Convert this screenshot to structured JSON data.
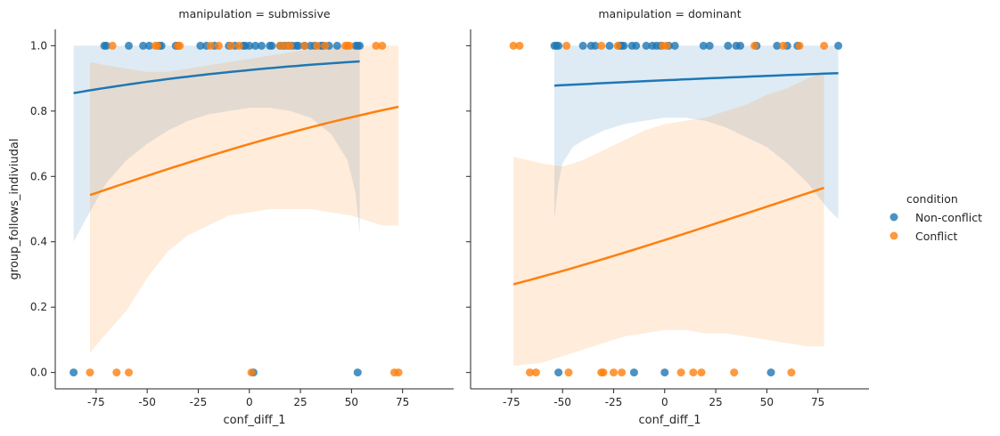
{
  "colors": {
    "Non-conflict": "#1f77b4",
    "Conflict": "#ff7f0e"
  },
  "chart_data": {
    "type": "scatter",
    "subtype": "logistic regression facets with confidence bands",
    "ylabel": "group_follows_indiviudal",
    "xlim": [
      -95,
      100
    ],
    "ylim": [
      -0.05,
      1.05
    ],
    "xticks": [
      -75,
      -50,
      -25,
      0,
      25,
      50,
      75
    ],
    "yticks": [
      0.0,
      0.2,
      0.4,
      0.6,
      0.8,
      1.0
    ],
    "yticklabels": [
      "0.0",
      "0.2",
      "0.4",
      "0.6",
      "0.8",
      "1.0"
    ],
    "legend": {
      "title": "condition",
      "placement": "right",
      "entries": [
        "Non-conflict",
        "Conflict"
      ]
    },
    "panels": [
      {
        "title": "manipulation = submissive",
        "xlabel": "conf_diff_1",
        "series": [
          {
            "name": "Non-conflict",
            "points_y1": [
              -71,
              -70,
              -59,
              -52,
              -49,
              -44,
              -43,
              -36,
              -35,
              -24,
              -21,
              -17,
              -10,
              -7,
              -3,
              -2,
              0,
              3,
              6,
              10,
              11,
              15,
              17,
              19,
              21,
              23,
              24,
              27,
              30,
              32,
              35,
              36,
              39,
              43,
              52,
              53,
              54
            ],
            "points_y0": [
              -86,
              2,
              53
            ],
            "fit_x": [
              -86,
              54
            ],
            "fit_y": [
              0.855,
              0.952
            ],
            "ci_x": [
              -86,
              -80,
              -70,
              -60,
              -50,
              -40,
              -30,
              -20,
              -10,
              0,
              10,
              20,
              30,
              40,
              48,
              52,
              54
            ],
            "ci_lower": [
              0.4,
              0.47,
              0.58,
              0.65,
              0.7,
              0.74,
              0.77,
              0.79,
              0.8,
              0.81,
              0.81,
              0.8,
              0.78,
              0.73,
              0.65,
              0.55,
              0.42
            ],
            "ci_upper": [
              1.0,
              1.0,
              1.0,
              1.0,
              1.0,
              1.0,
              1.0,
              1.0,
              1.0,
              1.0,
              1.0,
              1.0,
              1.0,
              1.0,
              1.0,
              1.0,
              1.0
            ]
          },
          {
            "name": "Conflict",
            "points_y1": [
              -67,
              -46,
              -45,
              -35,
              -34,
              -19,
              -15,
              -9,
              -5,
              15,
              18,
              20,
              27,
              33,
              37,
              47,
              48,
              49,
              62,
              65
            ],
            "points_y0": [
              -78,
              -65,
              -59,
              1,
              71,
              73
            ],
            "fit_x": [
              -78,
              73
            ],
            "fit_y": [
              0.543,
              0.813
            ],
            "ci_x": [
              -78,
              -70,
              -60,
              -50,
              -40,
              -30,
              -20,
              -10,
              0,
              10,
              20,
              30,
              40,
              50,
              55,
              60,
              65,
              73
            ],
            "ci_lower": [
              0.06,
              0.12,
              0.19,
              0.29,
              0.37,
              0.42,
              0.45,
              0.48,
              0.49,
              0.5,
              0.5,
              0.5,
              0.49,
              0.48,
              0.47,
              0.46,
              0.45,
              0.45
            ],
            "ci_upper": [
              0.95,
              0.94,
              0.93,
              0.92,
              0.92,
              0.93,
              0.94,
              0.95,
              0.96,
              0.97,
              0.98,
              0.99,
              1.0,
              1.0,
              1.0,
              1.0,
              1.0,
              1.0
            ]
          }
        ]
      },
      {
        "title": "manipulation = dominant",
        "xlabel": "conf_diff_1",
        "series": [
          {
            "name": "Non-conflict",
            "points_y1": [
              -54,
              -53,
              -52,
              -40,
              -36,
              -34,
              -27,
              -22,
              -21,
              -20,
              -16,
              -14,
              -9,
              -6,
              -4,
              -2,
              2,
              5,
              19,
              22,
              31,
              35,
              37,
              45,
              55,
              60,
              65,
              85
            ],
            "points_y0": [
              -52,
              -15,
              0,
              52
            ],
            "fit_x": [
              -54,
              85
            ],
            "fit_y": [
              0.878,
              0.916
            ],
            "ci_x": [
              -54,
              -52,
              -50,
              -45,
              -40,
              -30,
              -20,
              -10,
              0,
              10,
              20,
              30,
              40,
              50,
              60,
              70,
              80,
              85
            ],
            "ci_lower": [
              0.47,
              0.58,
              0.64,
              0.69,
              0.71,
              0.74,
              0.76,
              0.77,
              0.78,
              0.78,
              0.77,
              0.75,
              0.72,
              0.69,
              0.64,
              0.58,
              0.5,
              0.47
            ],
            "ci_upper": [
              1.0,
              1.0,
              1.0,
              1.0,
              1.0,
              1.0,
              1.0,
              1.0,
              1.0,
              1.0,
              1.0,
              1.0,
              1.0,
              1.0,
              1.0,
              1.0,
              1.0,
              1.0
            ]
          },
          {
            "name": "Conflict",
            "points_y1": [
              -74,
              -71,
              -48,
              -31,
              -23,
              -1,
              1,
              44,
              58,
              66,
              78
            ],
            "points_y0": [
              -66,
              -63,
              -47,
              -31,
              -30,
              -25,
              -21,
              8,
              14,
              18,
              34,
              62
            ],
            "fit_x": [
              -74,
              78
            ],
            "fit_y": [
              0.27,
              0.565
            ],
            "ci_x": [
              -74,
              -60,
              -50,
              -40,
              -30,
              -20,
              -10,
              0,
              10,
              20,
              30,
              40,
              50,
              60,
              70,
              78
            ],
            "ci_lower": [
              0.02,
              0.03,
              0.05,
              0.07,
              0.09,
              0.11,
              0.12,
              0.13,
              0.13,
              0.12,
              0.12,
              0.11,
              0.1,
              0.09,
              0.08,
              0.08
            ],
            "ci_upper": [
              0.66,
              0.64,
              0.63,
              0.65,
              0.68,
              0.71,
              0.74,
              0.76,
              0.77,
              0.78,
              0.8,
              0.82,
              0.85,
              0.87,
              0.9,
              0.92
            ]
          }
        ]
      }
    ]
  }
}
